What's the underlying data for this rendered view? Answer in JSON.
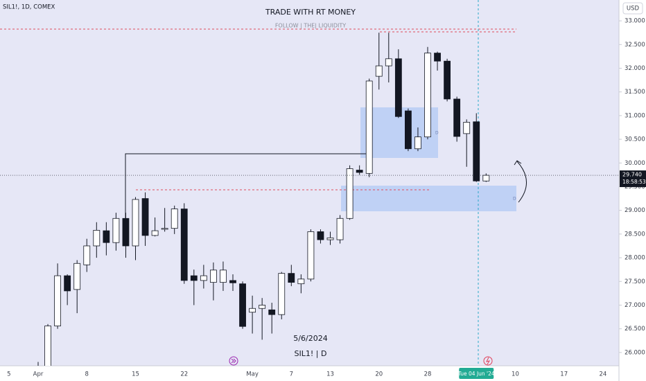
{
  "chart_data": {
    "type": "candlestick",
    "symbol": "SIL1!, 1D, COMEX",
    "title": "TRADE WITH RT MONEY",
    "subtitle": "FOLLOW  |  THE|  LIQUIDITY",
    "currency": "USD",
    "annotations": [
      "5/6/2024",
      "SIL1! | D"
    ],
    "zone_labels": [
      "D",
      "D"
    ],
    "categories": [
      "5",
      null,
      null,
      "Apr",
      null,
      null,
      null,
      null,
      "8",
      null,
      null,
      null,
      null,
      "15",
      null,
      null,
      null,
      null,
      "22",
      null,
      null,
      null,
      null,
      null,
      null,
      "May",
      null,
      null,
      null,
      "7",
      null,
      null,
      null,
      "13",
      null,
      null,
      null,
      null,
      "20",
      null,
      null,
      null,
      null,
      "28",
      null,
      null,
      null,
      null,
      "Tue 04 Jun '24",
      null,
      null,
      null,
      "10",
      null,
      null,
      null,
      null,
      "17",
      null,
      null,
      null,
      "24"
    ],
    "open": [
      null,
      null,
      null,
      25.55,
      25.7,
      26.56,
      27.62,
      27.33,
      27.85,
      28.25,
      28.57,
      28.32,
      28.83,
      28.25,
      29.25,
      28.47,
      28.6,
      28.62,
      29.03,
      27.62,
      27.52,
      27.48,
      27.48,
      27.52,
      27.45,
      26.85,
      26.93,
      26.9,
      26.8,
      27.67,
      27.45,
      27.55,
      28.55,
      28.38,
      28.38,
      28.83,
      29.85,
      29.78,
      31.83,
      32.05,
      32.2,
      31.1,
      30.3,
      30.55,
      32.32,
      32.15,
      31.35,
      30.62,
      30.87,
      29.62,
      null,
      null,
      null,
      null,
      null,
      null,
      null,
      null,
      null,
      null,
      null,
      null
    ],
    "high": [
      null,
      null,
      null,
      25.8,
      26.6,
      27.88,
      27.65,
      27.95,
      28.4,
      28.75,
      28.75,
      28.95,
      28.95,
      29.28,
      29.38,
      28.85,
      29.05,
      29.1,
      29.15,
      27.75,
      27.85,
      27.9,
      27.92,
      27.65,
      27.5,
      27.2,
      27.15,
      27.05,
      27.7,
      27.85,
      27.65,
      28.6,
      28.6,
      28.55,
      28.9,
      29.95,
      29.95,
      31.78,
      32.75,
      32.75,
      32.4,
      31.15,
      30.75,
      32.45,
      32.35,
      32.2,
      31.4,
      30.92,
      31.05,
      29.78,
      null,
      null,
      null,
      null,
      null,
      null,
      null,
      null,
      null,
      null,
      null,
      null
    ],
    "low": [
      null,
      null,
      null,
      25.4,
      25.65,
      26.5,
      27.0,
      26.83,
      27.7,
      28.0,
      28.05,
      28.15,
      28.0,
      27.95,
      28.25,
      28.45,
      28.55,
      28.5,
      27.45,
      27.0,
      27.35,
      27.1,
      27.3,
      27.3,
      26.5,
      26.4,
      26.27,
      26.4,
      26.7,
      27.4,
      27.25,
      27.5,
      28.3,
      28.27,
      28.3,
      28.8,
      29.75,
      29.7,
      31.55,
      31.7,
      30.95,
      30.25,
      30.25,
      30.5,
      31.95,
      31.3,
      30.45,
      29.92,
      29.6,
      29.6,
      null,
      null,
      null,
      null,
      null,
      null,
      null,
      null,
      null,
      null,
      null,
      null
    ],
    "close": [
      null,
      null,
      null,
      25.7,
      26.56,
      27.62,
      27.3,
      27.88,
      28.25,
      28.58,
      28.32,
      28.83,
      28.25,
      29.23,
      28.47,
      28.57,
      28.62,
      29.03,
      27.52,
      27.52,
      27.62,
      27.74,
      27.74,
      27.47,
      26.55,
      26.93,
      27.0,
      26.8,
      27.67,
      27.48,
      27.55,
      28.55,
      28.38,
      28.42,
      28.83,
      29.88,
      29.8,
      31.73,
      32.05,
      32.2,
      30.98,
      30.3,
      30.55,
      32.32,
      32.15,
      31.35,
      30.56,
      30.86,
      29.62,
      29.74,
      null,
      null,
      null,
      null,
      null,
      null,
      null,
      null,
      null,
      null,
      null,
      null
    ],
    "up_color": "#ffffff",
    "down_color": "#131722",
    "grid": false,
    "ylim": [
      25.72,
      33.44
    ],
    "yticks": [
      {
        "value": 26,
        "label": "26.000"
      },
      {
        "value": 26.5,
        "label": "26.500"
      },
      {
        "value": 27,
        "label": "27.000"
      },
      {
        "value": 27.5,
        "label": "27.500"
      },
      {
        "value": 28,
        "label": "28.000"
      },
      {
        "value": 28.5,
        "label": "28.500"
      },
      {
        "value": 29,
        "label": "29.000"
      },
      {
        "value": 29.5,
        "label": "29.500"
      },
      {
        "value": 30,
        "label": "30.000"
      },
      {
        "value": 30.5,
        "label": "30.500"
      },
      {
        "value": 31,
        "label": "31.000"
      },
      {
        "value": 31.5,
        "label": "31.500"
      },
      {
        "value": 32,
        "label": "32.000"
      },
      {
        "value": 32.5,
        "label": "32.500"
      },
      {
        "value": 33,
        "label": "33.000"
      }
    ],
    "last_price": {
      "value": 29.74,
      "label": "29.740"
    },
    "countdown": "18:58:53"
  }
}
